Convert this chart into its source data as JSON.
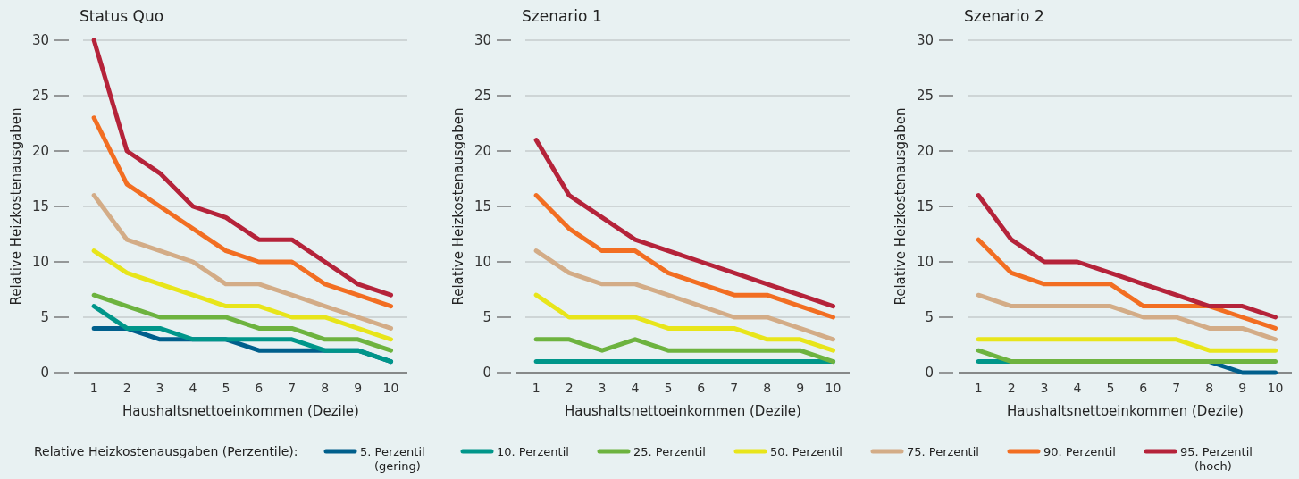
{
  "chart_data": [
    {
      "type": "line",
      "title": "Status Quo",
      "xlabel": "Haushaltsnettoeinkommen (Dezile)",
      "ylabel": "Relative Heizkostenausgaben",
      "x": [
        1,
        2,
        3,
        4,
        5,
        6,
        7,
        8,
        9,
        10
      ],
      "xlim": [
        0.4,
        10.5
      ],
      "xticks": [
        1,
        2,
        3,
        4,
        5,
        6,
        7,
        8,
        9,
        10
      ],
      "ylim": [
        0,
        30
      ],
      "yticks": [
        0,
        5,
        10,
        15,
        20,
        25,
        30
      ],
      "grid": "y",
      "legend": "bottom",
      "legend_title": "Relative Heizkostenausgaben (Perzentile):",
      "line_style": "solid",
      "series": [
        {
          "name": "5. Perzentil\n(gering)",
          "color": "#005f8c",
          "values": [
            4,
            4,
            3,
            3,
            3,
            2,
            2,
            2,
            2,
            1
          ]
        },
        {
          "name": "10. Perzentil",
          "color": "#00968a",
          "values": [
            6,
            4,
            4,
            3,
            3,
            3,
            3,
            2,
            2,
            1
          ]
        },
        {
          "name": "25. Perzentil",
          "color": "#6db33f",
          "values": [
            7,
            6,
            5,
            5,
            5,
            4,
            4,
            3,
            3,
            2
          ]
        },
        {
          "name": "50. Perzentil",
          "color": "#e8e51a",
          "values": [
            11,
            9,
            8,
            7,
            6,
            6,
            5,
            5,
            4,
            3
          ]
        },
        {
          "name": "75. Perzentil",
          "color": "#d3ac87",
          "values": [
            16,
            12,
            11,
            10,
            8,
            8,
            7,
            6,
            5,
            4
          ]
        },
        {
          "name": "90. Perzentil",
          "color": "#f26e22",
          "values": [
            23,
            17,
            15,
            13,
            11,
            10,
            10,
            8,
            7,
            6
          ]
        },
        {
          "name": "95. Perzentil\n(hoch)",
          "color": "#b5233a",
          "values": [
            30,
            20,
            18,
            15,
            14,
            12,
            12,
            10,
            8,
            7
          ]
        }
      ]
    },
    {
      "type": "line",
      "title": "Szenario 1",
      "xlabel": "Haushaltsnettoeinkommen (Dezile)",
      "ylabel": "Relative Heizkostenausgaben",
      "x": [
        1,
        2,
        3,
        4,
        5,
        6,
        7,
        8,
        9,
        10
      ],
      "xlim": [
        0.4,
        10.5
      ],
      "xticks": [
        1,
        2,
        3,
        4,
        5,
        6,
        7,
        8,
        9,
        10
      ],
      "ylim": [
        0,
        30
      ],
      "yticks": [
        0,
        5,
        10,
        15,
        20,
        25,
        30
      ],
      "grid": "y",
      "line_style": "solid",
      "series": [
        {
          "color": "#005f8c",
          "values": [
            null,
            null,
            null,
            null,
            null,
            null,
            null,
            null,
            null,
            null
          ]
        },
        {
          "color": "#00968a",
          "values": [
            1,
            1,
            1,
            1,
            1,
            1,
            1,
            1,
            1,
            1
          ]
        },
        {
          "color": "#6db33f",
          "values": [
            3,
            3,
            2,
            3,
            2,
            2,
            2,
            2,
            2,
            1
          ]
        },
        {
          "color": "#e8e51a",
          "values": [
            7,
            5,
            5,
            5,
            4,
            4,
            4,
            3,
            3,
            2
          ]
        },
        {
          "color": "#d3ac87",
          "values": [
            11,
            9,
            8,
            8,
            7,
            6,
            5,
            5,
            4,
            3
          ]
        },
        {
          "color": "#f26e22",
          "values": [
            16,
            13,
            11,
            11,
            9,
            8,
            7,
            7,
            6,
            5
          ]
        },
        {
          "color": "#b5233a",
          "values": [
            21,
            16,
            14,
            12,
            11,
            10,
            9,
            8,
            7,
            6
          ]
        }
      ]
    },
    {
      "type": "line",
      "title": "Szenario 2",
      "xlabel": "Haushaltsnettoeinkommen (Dezile)",
      "ylabel": "Relative Heizkostenausgaben",
      "x": [
        1,
        2,
        3,
        4,
        5,
        6,
        7,
        8,
        9,
        10
      ],
      "xlim": [
        0.4,
        10.5
      ],
      "xticks": [
        1,
        2,
        3,
        4,
        5,
        6,
        7,
        8,
        9,
        10
      ],
      "ylim": [
        0,
        30
      ],
      "yticks": [
        0,
        5,
        10,
        15,
        20,
        25,
        30
      ],
      "grid": "y",
      "line_style": "solid",
      "series": [
        {
          "color": "#005f8c",
          "values": [
            null,
            null,
            null,
            null,
            null,
            null,
            null,
            1,
            0,
            0
          ]
        },
        {
          "color": "#00968a",
          "values": [
            1,
            1,
            null,
            null,
            null,
            null,
            null,
            null,
            null,
            null
          ]
        },
        {
          "color": "#6db33f",
          "values": [
            2,
            1,
            1,
            1,
            1,
            1,
            1,
            1,
            1,
            1
          ]
        },
        {
          "color": "#e8e51a",
          "values": [
            3,
            3,
            3,
            3,
            3,
            3,
            3,
            2,
            2,
            2
          ]
        },
        {
          "color": "#d3ac87",
          "values": [
            7,
            6,
            6,
            6,
            6,
            5,
            5,
            4,
            4,
            3
          ]
        },
        {
          "color": "#f26e22",
          "values": [
            12,
            9,
            8,
            8,
            8,
            6,
            6,
            6,
            5,
            4
          ]
        },
        {
          "color": "#b5233a",
          "values": [
            16,
            12,
            10,
            10,
            9,
            8,
            7,
            6,
            6,
            5
          ]
        }
      ]
    }
  ]
}
